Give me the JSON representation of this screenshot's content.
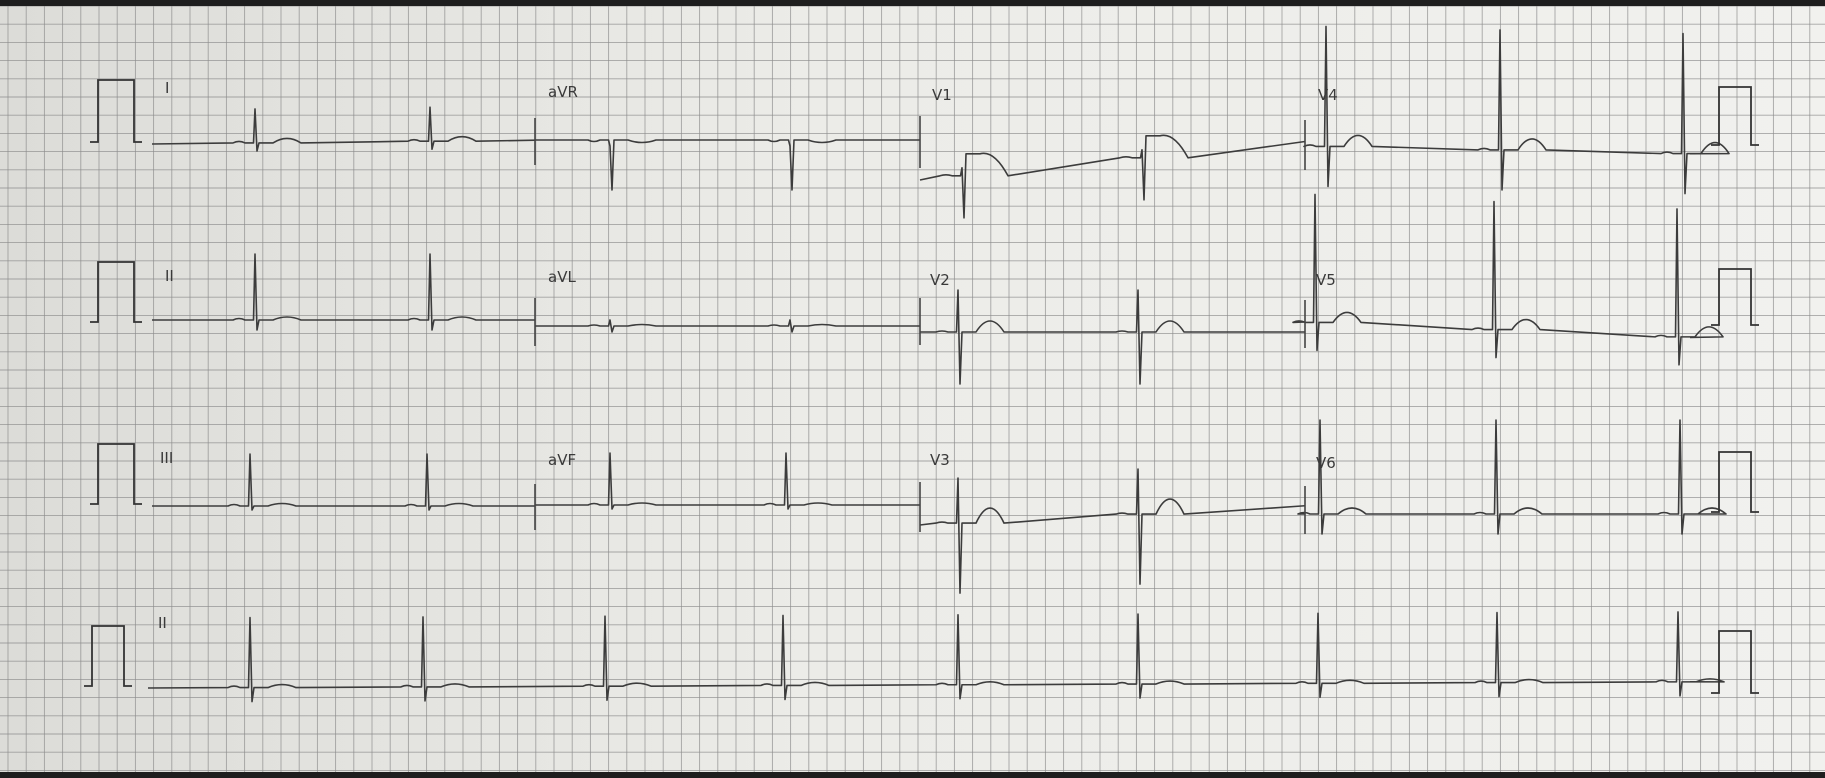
{
  "ecg": {
    "leads": {
      "r1_c1": "I",
      "r1_c2": "aVR",
      "r1_c3": "V1",
      "r1_c4": "V4",
      "r2_c1": "II",
      "r2_c2": "aVL",
      "r2_c3": "V2",
      "r2_c4": "V5",
      "r3_c1": "III",
      "r3_c2": "aVF",
      "r3_c3": "V3",
      "r3_c4": "V6",
      "r4_c1": "II"
    },
    "rhythm_strip_lead": "II",
    "grid_color": "#8c8c8c",
    "trace_color": "#3c3c3c"
  }
}
